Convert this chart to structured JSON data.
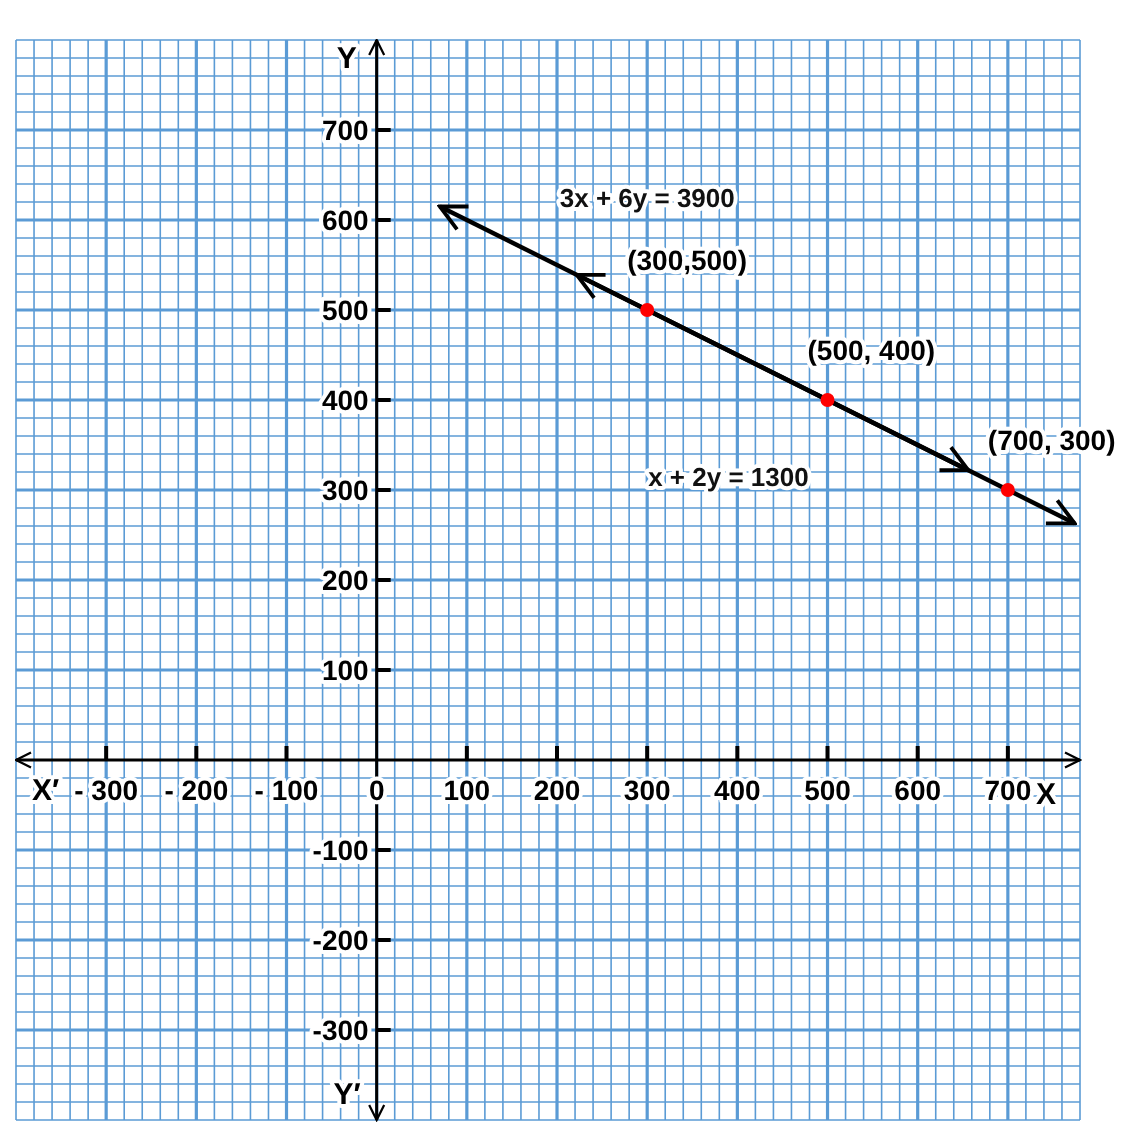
{
  "chart_data": {
    "type": "line",
    "xlabel": "X",
    "ylabel": "Y",
    "xlim": [
      -400,
      780
    ],
    "ylim": [
      -400,
      800
    ],
    "xticks": [
      {
        "value": -300,
        "label": "- 300"
      },
      {
        "value": -200,
        "label": "- 200"
      },
      {
        "value": -100,
        "label": "- 100"
      },
      0,
      100,
      200,
      300,
      400,
      500,
      600,
      700,
      {
        "value": -400,
        "label": null
      },
      {
        "value": -380,
        "label": null
      },
      {
        "value": -360,
        "label": null
      },
      {
        "value": -340,
        "label": null
      },
      {
        "value": -320,
        "label": null
      },
      {
        "value": -280,
        "label": null
      },
      {
        "value": -260,
        "label": null
      },
      {
        "value": -240,
        "label": null
      },
      {
        "value": -220,
        "label": null
      },
      {
        "value": -180,
        "label": null
      },
      {
        "value": -160,
        "label": null
      },
      {
        "value": -140,
        "label": null
      },
      {
        "value": -120,
        "label": null
      },
      {
        "value": -80,
        "label": null
      },
      {
        "value": -60,
        "label": null
      },
      {
        "value": -40,
        "label": null
      },
      {
        "value": -20,
        "label": null
      },
      {
        "value": 20,
        "label": null
      },
      {
        "value": 40,
        "label": null
      },
      {
        "value": 60,
        "label": null
      },
      {
        "value": 80,
        "label": null
      },
      {
        "value": 120,
        "label": null
      },
      {
        "value": 140,
        "label": null
      },
      {
        "value": 160,
        "label": null
      },
      {
        "value": 180,
        "label": null
      },
      {
        "value": 220,
        "label": null
      },
      {
        "value": 240,
        "label": null
      },
      {
        "value": 260,
        "label": null
      },
      {
        "value": 280,
        "label": null
      },
      {
        "value": 320,
        "label": null
      },
      {
        "value": 340,
        "label": null
      },
      {
        "value": 360,
        "label": null
      },
      {
        "value": 380,
        "label": null
      },
      {
        "value": 420,
        "label": null
      },
      {
        "value": 440,
        "label": null
      },
      {
        "value": 460,
        "label": null
      },
      {
        "value": 480,
        "label": null
      },
      {
        "value": 520,
        "label": null
      },
      {
        "value": 540,
        "label": null
      },
      {
        "value": 560,
        "label": null
      },
      {
        "value": 580,
        "label": null
      },
      {
        "value": 620,
        "label": null
      },
      {
        "value": 640,
        "label": null
      },
      {
        "value": 660,
        "label": null
      },
      {
        "value": 680,
        "label": null
      },
      {
        "value": 720,
        "label": null
      },
      {
        "value": 740,
        "label": null
      },
      {
        "value": 760,
        "label": null
      },
      {
        "value": 780,
        "label": null
      }
    ],
    "yticks": [
      {
        "value": -300,
        "label": "-300"
      },
      {
        "value": -200,
        "label": "-200"
      },
      {
        "value": -100,
        "label": "-100"
      },
      100,
      200,
      300,
      400,
      500,
      600,
      700,
      {
        "value": -400,
        "label": null
      },
      {
        "value": -380,
        "label": null
      },
      {
        "value": -360,
        "label": null
      },
      {
        "value": -340,
        "label": null
      },
      {
        "value": -320,
        "label": null
      },
      {
        "value": -280,
        "label": null
      },
      {
        "value": -260,
        "label": null
      },
      {
        "value": -240,
        "label": null
      },
      {
        "value": -220,
        "label": null
      },
      {
        "value": -180,
        "label": null
      },
      {
        "value": -160,
        "label": null
      },
      {
        "value": -140,
        "label": null
      },
      {
        "value": -120,
        "label": null
      },
      {
        "value": -80,
        "label": null
      },
      {
        "value": -60,
        "label": null
      },
      {
        "value": -40,
        "label": null
      },
      {
        "value": -20,
        "label": null
      },
      {
        "value": 20,
        "label": null
      },
      {
        "value": 40,
        "label": null
      },
      {
        "value": 60,
        "label": null
      },
      {
        "value": 80,
        "label": null
      },
      {
        "value": 120,
        "label": null
      },
      {
        "value": 140,
        "label": null
      },
      {
        "value": 160,
        "label": null
      },
      {
        "value": 180,
        "label": null
      },
      {
        "value": 220,
        "label": null
      },
      {
        "value": 240,
        "label": null
      },
      {
        "value": 260,
        "label": null
      },
      {
        "value": 280,
        "label": null
      },
      {
        "value": 320,
        "label": null
      },
      {
        "value": 340,
        "label": null
      },
      {
        "value": 360,
        "label": null
      },
      {
        "value": 380,
        "label": null
      },
      {
        "value": 420,
        "label": null
      },
      {
        "value": 440,
        "label": null
      },
      {
        "value": 460,
        "label": null
      },
      {
        "value": 480,
        "label": null
      },
      {
        "value": 520,
        "label": null
      },
      {
        "value": 540,
        "label": null
      },
      {
        "value": 560,
        "label": null
      },
      {
        "value": 580,
        "label": null
      },
      {
        "value": 620,
        "label": null
      },
      {
        "value": 640,
        "label": null
      },
      {
        "value": 660,
        "label": null
      },
      {
        "value": 680,
        "label": null
      },
      {
        "value": 720,
        "label": null
      },
      {
        "value": 740,
        "label": null
      },
      {
        "value": 760,
        "label": null
      },
      {
        "value": 780,
        "label": null
      },
      {
        "value": 800,
        "label": null
      }
    ],
    "grid": true,
    "legend": false,
    "line_style": "solid",
    "series": [
      {
        "name": "3x + 6y = 3900",
        "color": "#000000",
        "x": [
          70,
          774
        ],
        "values": [
          615,
          263
        ],
        "marker": "none"
      },
      {
        "name": "x + 2y = 1300",
        "color": "#000000",
        "x": [
          222,
          656
        ],
        "values": [
          539,
          322
        ],
        "marker": "none"
      },
      {
        "type": "scatter",
        "color": "#ff0000",
        "x": [
          300,
          500,
          700
        ],
        "values": [
          500,
          400,
          300
        ],
        "marker": "circle"
      }
    ],
    "annotations": [
      "X′",
      "Y′",
      {
        "text": "(300,500)",
        "x": 300,
        "y": 500
      },
      {
        "text": "(500, 400)",
        "x": 500,
        "y": 400
      },
      {
        "text": "(700, 300)",
        "x": 700,
        "y": 300
      }
    ]
  }
}
